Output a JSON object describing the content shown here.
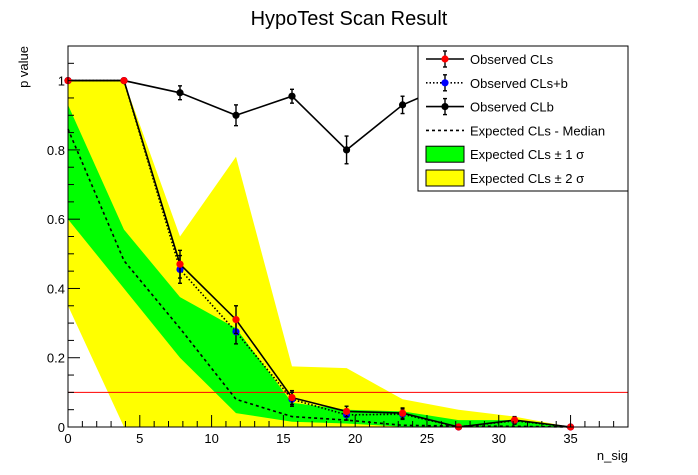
{
  "colors": {
    "observed_cls": "#ff0000",
    "observed_clsb": "#0000ff",
    "observed_clb": "#000000",
    "band_1sigma": "#00ff00",
    "band_2sigma": "#ffff00",
    "threshold_line": "#ff0000"
  },
  "chart_data": {
    "type": "line",
    "title": "HypoTest Scan Result",
    "xlabel": "n_sig",
    "ylabel": "p value",
    "xlim": [
      0,
      39
    ],
    "ylim": [
      0,
      1.1
    ],
    "x_ticks": [
      0,
      5,
      10,
      15,
      20,
      25,
      30,
      35
    ],
    "y_ticks": [
      0,
      0.2,
      0.4,
      0.6,
      0.8,
      1
    ],
    "x_tick_labels": [
      "0",
      "5",
      "10",
      "15",
      "20",
      "25",
      "30",
      "35"
    ],
    "y_tick_labels": [
      "0",
      "0.2",
      "0.4",
      "0.6",
      "0.8",
      "1"
    ],
    "grid": false,
    "legend_position": "top-right",
    "threshold": 0.1,
    "x": [
      0,
      3.9,
      7.8,
      11.7,
      15.6,
      19.4,
      23.3,
      27.2,
      31.1,
      35
    ],
    "series": [
      {
        "name": "Observed CLs",
        "style": "solid-red-markers",
        "values": [
          1.0,
          1.0,
          0.47,
          0.31,
          0.085,
          0.045,
          0.04,
          0.0,
          0.02,
          0.0
        ],
        "errors": [
          0,
          0,
          0.04,
          0.04,
          0.02,
          0.015,
          0.015,
          0,
          0.01,
          0
        ]
      },
      {
        "name": "Observed CLs+b",
        "style": "dotted-blue-markers",
        "values": [
          1.0,
          1.0,
          0.455,
          0.275,
          0.08,
          0.035,
          0.037,
          0.0,
          0.018,
          0.0
        ],
        "errors": [
          0,
          0,
          0.04,
          0.035,
          0.02,
          0.015,
          0.015,
          0,
          0.01,
          0
        ]
      },
      {
        "name": "Observed CLb",
        "style": "solid-black-markers",
        "values": [
          1.0,
          1.0,
          0.965,
          0.9,
          0.955,
          0.8,
          0.93,
          1.0,
          1.0,
          1.0
        ],
        "errors": [
          0,
          0,
          0.02,
          0.03,
          0.02,
          0.04,
          0.025,
          0,
          0,
          0
        ]
      },
      {
        "name": "Expected CLs - Median",
        "style": "dashed-black",
        "values": [
          0.86,
          0.48,
          0.285,
          0.08,
          0.03,
          0.02,
          0.005,
          0.003,
          0.002,
          0.0
        ]
      },
      {
        "name": "Expected CLs ± 1 σ",
        "style": "band-green",
        "lower": [
          0.6,
          0.4,
          0.2,
          0.04,
          0.015,
          0.01,
          0.001,
          0.001,
          0.0,
          0.0
        ],
        "upper": [
          0.93,
          0.57,
          0.375,
          0.285,
          0.07,
          0.05,
          0.045,
          0.02,
          0.02,
          0.0
        ]
      },
      {
        "name": "Expected CLs ± 2 σ",
        "style": "band-yellow",
        "lower": [
          0.35,
          0.0,
          0.0,
          0.0,
          0.0,
          0.0,
          0.0,
          0.0,
          0.0,
          0.0
        ],
        "upper": [
          1.0,
          1.0,
          0.55,
          0.78,
          0.175,
          0.17,
          0.08,
          0.05,
          0.03,
          0.0
        ]
      }
    ]
  }
}
